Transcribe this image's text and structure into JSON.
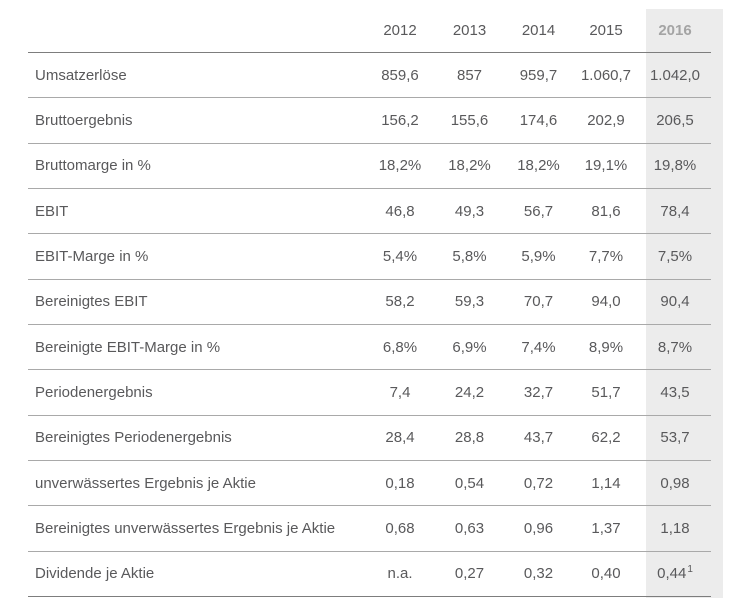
{
  "colors": {
    "background": "#ffffff",
    "highlight_column_bg": "#ececec",
    "year_header_text": "#b6b6b6",
    "current_year_header_text": "#a4a4a4",
    "body_text": "#59595b",
    "outer_line": "#7d7d7d",
    "row_line": "#a9a9a9"
  },
  "chart_data": {
    "type": "table",
    "columns": [
      "2012",
      "2013",
      "2014",
      "2015",
      "2016"
    ],
    "highlight_column": "2016",
    "footnote_marker": "1",
    "rows": [
      {
        "label": "Umsatzerlöse",
        "values": [
          "859,6",
          "857",
          "959,7",
          "1.060,7",
          "1.042,0"
        ]
      },
      {
        "label": "Bruttoergebnis",
        "values": [
          "156,2",
          "155,6",
          "174,6",
          "202,9",
          "206,5"
        ]
      },
      {
        "label": "Bruttomarge in %",
        "values": [
          "18,2%",
          "18,2%",
          "18,2%",
          "19,1%",
          "19,8%"
        ]
      },
      {
        "label": "EBIT",
        "values": [
          "46,8",
          "49,3",
          "56,7",
          "81,6",
          "78,4"
        ]
      },
      {
        "label": "EBIT-Marge in %",
        "values": [
          "5,4%",
          "5,8%",
          "5,9%",
          "7,7%",
          "7,5%"
        ]
      },
      {
        "label": "Bereinigtes EBIT",
        "values": [
          "58,2",
          "59,3",
          "70,7",
          "94,0",
          "90,4"
        ]
      },
      {
        "label": "Bereinigte EBIT-Marge in %",
        "values": [
          "6,8%",
          "6,9%",
          "7,4%",
          "8,9%",
          "8,7%"
        ]
      },
      {
        "label": "Periodenergebnis",
        "values": [
          "7,4",
          "24,2",
          "32,7",
          "51,7",
          "43,5"
        ]
      },
      {
        "label": "Bereinigtes Periodenergebnis",
        "values": [
          "28,4",
          "28,8",
          "43,7",
          "62,2",
          "53,7"
        ]
      },
      {
        "label": "unverwässertes Ergebnis je Aktie",
        "values": [
          "0,18",
          "0,54",
          "0,72",
          "1,14",
          "0,98"
        ]
      },
      {
        "label": "Bereinigtes unverwässertes Ergebnis je Aktie",
        "values": [
          "0,68",
          "0,63",
          "0,96",
          "1,37",
          "1,18"
        ]
      },
      {
        "label": "Dividende je Aktie",
        "values": [
          "n.a.",
          "0,27",
          "0,32",
          "0,40",
          "0,44"
        ],
        "footnote_on_last_value": true
      }
    ]
  }
}
